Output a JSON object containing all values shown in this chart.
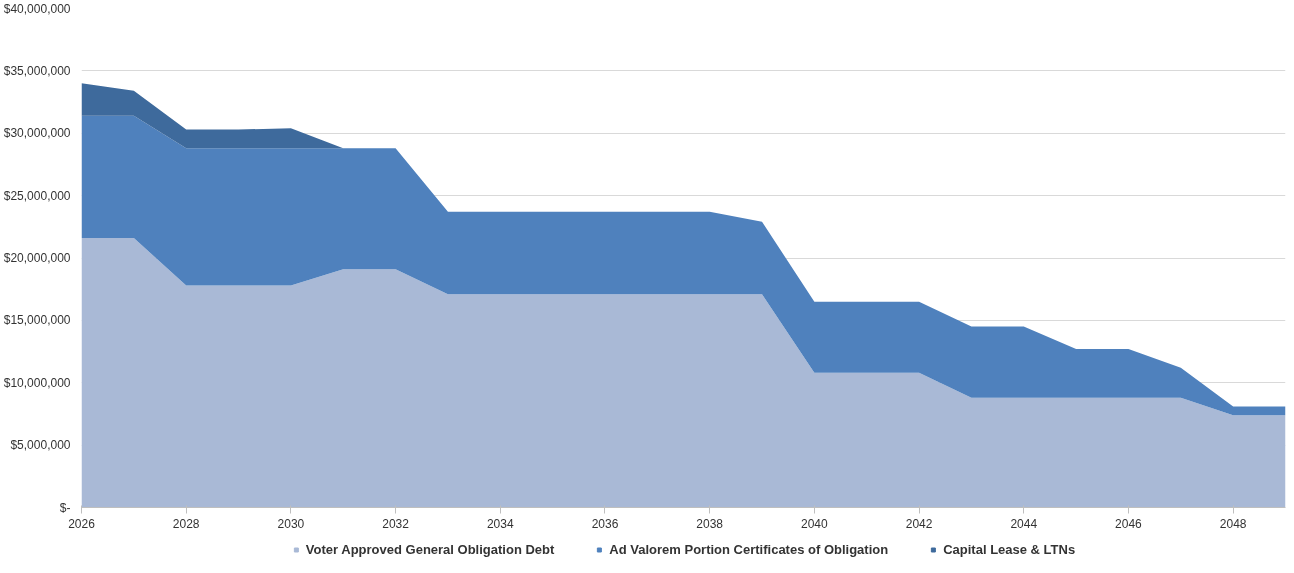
{
  "chart_data": {
    "type": "area",
    "stacked": true,
    "x": [
      2026,
      2027,
      2028,
      2029,
      2030,
      2031,
      2032,
      2033,
      2034,
      2035,
      2036,
      2037,
      2038,
      2039,
      2040,
      2041,
      2042,
      2043,
      2044,
      2045,
      2046,
      2047,
      2048,
      2049
    ],
    "series": [
      {
        "name": "Voter Approved General Obligation Debt",
        "color": "#a9b9d6",
        "values": [
          21600000,
          21600000,
          17800000,
          17800000,
          17800000,
          19100000,
          19100000,
          17100000,
          17100000,
          17100000,
          17100000,
          17100000,
          17100000,
          17100000,
          10800000,
          10800000,
          10800000,
          8800000,
          8800000,
          8800000,
          8800000,
          8800000,
          7400000,
          7400000
        ]
      },
      {
        "name": "Ad Valorem Portion Certificates of Obligation",
        "color": "#4f81bd",
        "values": [
          9800000,
          9800000,
          11000000,
          11000000,
          11000000,
          9700000,
          9700000,
          6600000,
          6600000,
          6600000,
          6600000,
          6600000,
          6600000,
          5800000,
          5700000,
          5700000,
          5700000,
          5700000,
          5700000,
          3900000,
          3900000,
          2400000,
          700000,
          700000
        ]
      },
      {
        "name": "Capital Lease & LTNs",
        "color": "#3e6a9c",
        "values": [
          2600000,
          2000000,
          1500000,
          1500000,
          1600000,
          0,
          0,
          0,
          0,
          0,
          0,
          0,
          0,
          0,
          0,
          0,
          0,
          0,
          0,
          0,
          0,
          0,
          0,
          0
        ]
      }
    ],
    "xlim": [
      2026,
      2049
    ],
    "xticks": [
      2026,
      2028,
      2030,
      2032,
      2034,
      2036,
      2038,
      2040,
      2042,
      2044,
      2046,
      2048
    ],
    "ylim": [
      0,
      40000000
    ],
    "yticks": [
      {
        "value": 0,
        "label": "$-"
      },
      {
        "value": 5000000,
        "label": "$5,000,000"
      },
      {
        "value": 10000000,
        "label": "$10,000,000"
      },
      {
        "value": 15000000,
        "label": "$15,000,000"
      },
      {
        "value": 20000000,
        "label": "$20,000,000"
      },
      {
        "value": 25000000,
        "label": "$25,000,000"
      },
      {
        "value": 30000000,
        "label": "$30,000,000"
      },
      {
        "value": 35000000,
        "label": "$35,000,000"
      },
      {
        "value": 40000000,
        "label": "$40,000,000"
      }
    ],
    "grid": "y",
    "legend": "bottom"
  }
}
